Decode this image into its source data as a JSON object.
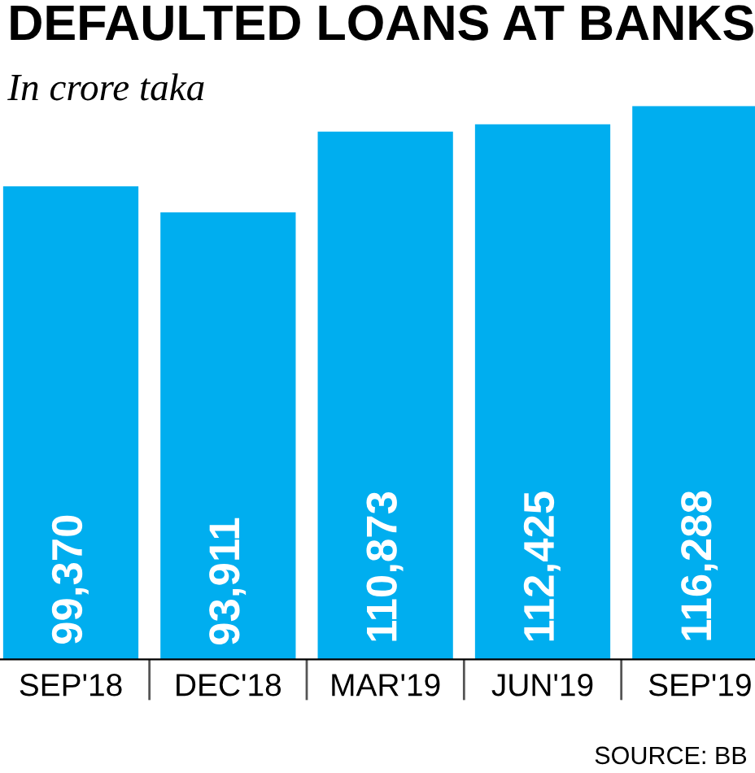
{
  "chart_data": {
    "type": "bar",
    "title": "DEFAULTED LOANS AT BANKS",
    "subtitle": "In crore taka",
    "categories": [
      "SEP'18",
      "DEC'18",
      "MAR'19",
      "JUN'19",
      "SEP'19"
    ],
    "values": [
      99370,
      93911,
      110873,
      112425,
      116288
    ],
    "color": "#00aeef",
    "value_labels": [
      "99,370",
      "93,911",
      "110,873",
      "112,425",
      "116,288"
    ],
    "grid": false,
    "legend": false,
    "annotations": [
      "SOURCE: BB"
    ]
  }
}
